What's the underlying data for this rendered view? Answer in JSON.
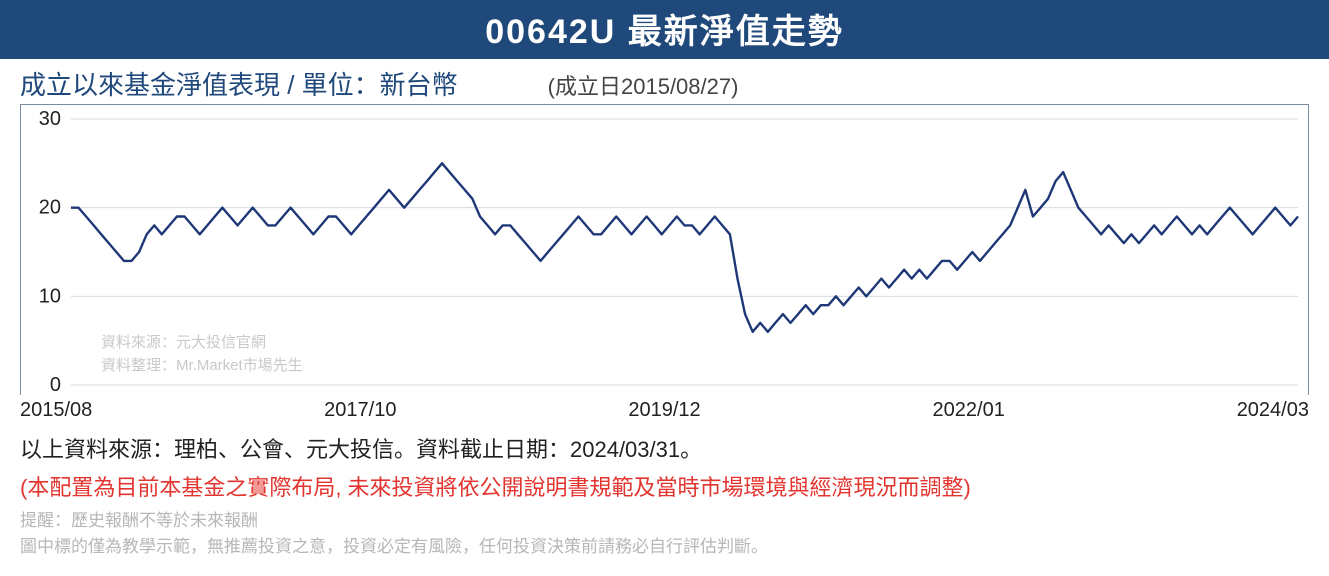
{
  "header": {
    "title": "00642U 最新淨值走勢"
  },
  "subtitle": {
    "main": "成立以來基金淨值表現 / 單位：新台幣",
    "date": "(成立日2015/08/27)"
  },
  "chart": {
    "type": "line",
    "ylim": [
      0,
      30
    ],
    "yticks": [
      0,
      10,
      20,
      30
    ],
    "xticks": [
      "2015/08",
      "2017/10",
      "2019/12",
      "2022/01",
      "2024/03"
    ],
    "line_color": "#1e3877",
    "line_width": 2.4,
    "grid_color": "#d7dce3",
    "border_color": "#7c8aa0",
    "background_color": "#ffffff",
    "tick_fontsize": 20,
    "tick_color": "#222222",
    "watermark_lines": [
      "資料來源：元大投信官網",
      "資料整理：Mr.Market市場先生"
    ],
    "watermark_color": "#c9c9c9",
    "values": [
      20,
      20,
      19,
      18,
      17,
      16,
      15,
      14,
      14,
      15,
      17,
      18,
      17,
      18,
      19,
      19,
      18,
      17,
      18,
      19,
      20,
      19,
      18,
      19,
      20,
      19,
      18,
      18,
      19,
      20,
      19,
      18,
      17,
      18,
      19,
      19,
      18,
      17,
      18,
      19,
      20,
      21,
      22,
      21,
      20,
      21,
      22,
      23,
      24,
      25,
      24,
      23,
      22,
      21,
      19,
      18,
      17,
      18,
      18,
      17,
      16,
      15,
      14,
      15,
      16,
      17,
      18,
      19,
      18,
      17,
      17,
      18,
      19,
      18,
      17,
      18,
      19,
      18,
      17,
      18,
      19,
      18,
      18,
      17,
      18,
      19,
      18,
      17,
      12,
      8,
      6,
      7,
      6,
      7,
      8,
      7,
      8,
      9,
      8,
      9,
      9,
      10,
      9,
      10,
      11,
      10,
      11,
      12,
      11,
      12,
      13,
      12,
      13,
      12,
      13,
      14,
      14,
      13,
      14,
      15,
      14,
      15,
      16,
      17,
      18,
      20,
      22,
      19,
      20,
      21,
      23,
      24,
      22,
      20,
      19,
      18,
      17,
      18,
      17,
      16,
      17,
      16,
      17,
      18,
      17,
      18,
      19,
      18,
      17,
      18,
      17,
      18,
      19,
      20,
      19,
      18,
      17,
      18,
      19,
      20,
      19,
      18,
      19
    ]
  },
  "source": "以上資料來源：理柏、公會、元大投信。資料截止日期：2024/03/31。",
  "warning": "(本配置為目前本基金之實際布局, 未來投資將依公開說明書規範及當時市場環境與經濟現況而調整)",
  "footer": {
    "line1": "提醒：歷史報酬不等於未來報酬",
    "line2": "圖中標的僅為教學示範，無推薦投資之意，投資必定有風險，任何投資決策前請務必自行評估判斷。"
  }
}
